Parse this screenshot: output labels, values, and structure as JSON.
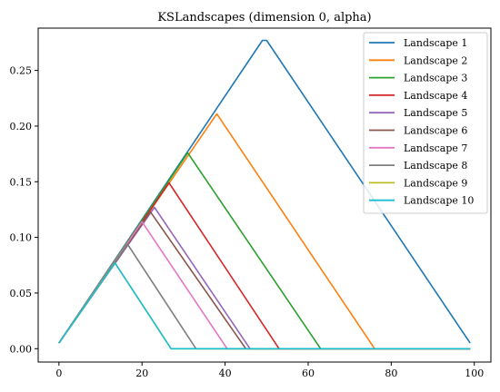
{
  "chart_data": {
    "type": "line",
    "title": "KSLandscapes (dimension 0, alpha)",
    "xlabel": "",
    "ylabel": "",
    "xlim": [
      -5,
      104
    ],
    "ylim": [
      -0.012,
      0.288
    ],
    "xticks": [
      0,
      20,
      40,
      60,
      80,
      100
    ],
    "xtick_labels": [
      "0",
      "20",
      "40",
      "60",
      "80",
      "100"
    ],
    "yticks": [
      0.0,
      0.05,
      0.1,
      0.15,
      0.2,
      0.25
    ],
    "ytick_labels": [
      "0.00",
      "0.05",
      "0.10",
      "0.15",
      "0.20",
      "0.25"
    ],
    "grid": false,
    "legend_position": "top-right",
    "series": [
      {
        "name": "Landscape 1",
        "color": "#1f77b4",
        "x": [
          0,
          49,
          50,
          99
        ],
        "y": [
          0.005,
          0.277,
          0.277,
          0.005
        ]
      },
      {
        "name": "Landscape 2",
        "color": "#ff7f0e",
        "x": [
          0,
          38,
          76,
          99
        ],
        "y": [
          0.005,
          0.211,
          0.0,
          0.0
        ]
      },
      {
        "name": "Landscape 3",
        "color": "#2ca02c",
        "x": [
          0,
          31,
          63,
          99
        ],
        "y": [
          0.005,
          0.176,
          0.0,
          0.0
        ]
      },
      {
        "name": "Landscape 4",
        "color": "#d62728",
        "x": [
          0,
          26.5,
          53,
          99
        ],
        "y": [
          0.005,
          0.149,
          0.0,
          0.0
        ]
      },
      {
        "name": "Landscape 5",
        "color": "#9467bd",
        "x": [
          0,
          23,
          46,
          99
        ],
        "y": [
          0.005,
          0.127,
          0.0,
          0.0
        ]
      },
      {
        "name": "Landscape 6",
        "color": "#8c564b",
        "x": [
          0,
          22,
          45,
          99
        ],
        "y": [
          0.005,
          0.123,
          0.0,
          0.0
        ]
      },
      {
        "name": "Landscape 7",
        "color": "#e377c2",
        "x": [
          0,
          20,
          40.5,
          99
        ],
        "y": [
          0.005,
          0.114,
          0.0,
          0.0
        ]
      },
      {
        "name": "Landscape 8",
        "color": "#7f7f7f",
        "x": [
          0,
          16.5,
          33,
          99
        ],
        "y": [
          0.005,
          0.094,
          0.0,
          0.0
        ]
      },
      {
        "name": "Landscape 9",
        "color": "#bcbd22",
        "x": [
          0,
          13.5,
          27,
          99
        ],
        "y": [
          0.005,
          0.077,
          0.0,
          0.0
        ]
      },
      {
        "name": "Landscape 10",
        "color": "#17becf",
        "x": [
          0,
          13.5,
          27,
          99
        ],
        "y": [
          0.005,
          0.077,
          0.0,
          0.0
        ]
      }
    ]
  }
}
